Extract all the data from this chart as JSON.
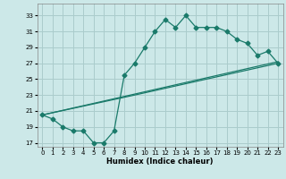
{
  "xlabel": "Humidex (Indice chaleur)",
  "bg_color": "#cce8e8",
  "grid_color": "#aacccc",
  "line_color": "#1a7a6a",
  "line1_x": [
    0,
    1,
    2,
    3,
    4,
    5,
    6,
    7,
    8,
    9,
    10,
    11,
    12,
    13,
    14,
    15,
    16,
    17,
    18,
    19,
    20,
    21,
    22,
    23
  ],
  "line1_y": [
    20.5,
    20.0,
    19.0,
    18.5,
    18.5,
    17.0,
    17.0,
    18.5,
    25.5,
    27.0,
    29.0,
    31.0,
    32.5,
    31.5,
    33.0,
    31.5,
    31.5,
    31.5,
    31.0,
    30.0,
    29.5,
    28.0,
    28.5,
    27.0
  ],
  "line2_x": [
    0,
    23
  ],
  "line2_y": [
    20.5,
    27.2
  ],
  "line3_x": [
    0,
    9,
    23
  ],
  "line3_y": [
    20.5,
    23.0,
    27.0
  ],
  "yticks": [
    17,
    19,
    21,
    23,
    25,
    27,
    29,
    31,
    33
  ],
  "xticks": [
    0,
    1,
    2,
    3,
    4,
    5,
    6,
    7,
    8,
    9,
    10,
    11,
    12,
    13,
    14,
    15,
    16,
    17,
    18,
    19,
    20,
    21,
    22,
    23
  ],
  "ylim": [
    16.5,
    34.5
  ],
  "xlim": [
    -0.5,
    23.5
  ],
  "marker": "D",
  "markersize": 2.5
}
